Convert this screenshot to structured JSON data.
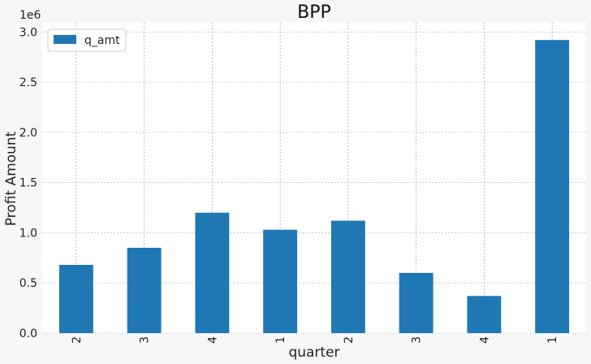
{
  "chart_data": {
    "type": "bar",
    "title": "BPP",
    "xlabel": "quarter",
    "ylabel": "Profit Amount",
    "y_scale_label": "1e6",
    "categories": [
      "2",
      "3",
      "4",
      "1",
      "2",
      "3",
      "4",
      "1"
    ],
    "series": [
      {
        "name": "q_amt",
        "values": [
          680000,
          850000,
          1200000,
          1030000,
          1120000,
          600000,
          370000,
          2920000
        ]
      }
    ],
    "ylim": [
      0,
      3100000
    ],
    "yticks": [
      {
        "value": 0,
        "label": "0.0"
      },
      {
        "value": 500000,
        "label": "0.5"
      },
      {
        "value": 1000000,
        "label": "1.0"
      },
      {
        "value": 1500000,
        "label": "1.5"
      },
      {
        "value": 2000000,
        "label": "2.0"
      },
      {
        "value": 2500000,
        "label": "2.5"
      },
      {
        "value": 3000000,
        "label": "3.0"
      }
    ],
    "grid": true,
    "legend_position": "top-left",
    "colors": {
      "bar": "#1f77b4",
      "grid": "#b0b0b0",
      "background": "#ffffff"
    }
  }
}
